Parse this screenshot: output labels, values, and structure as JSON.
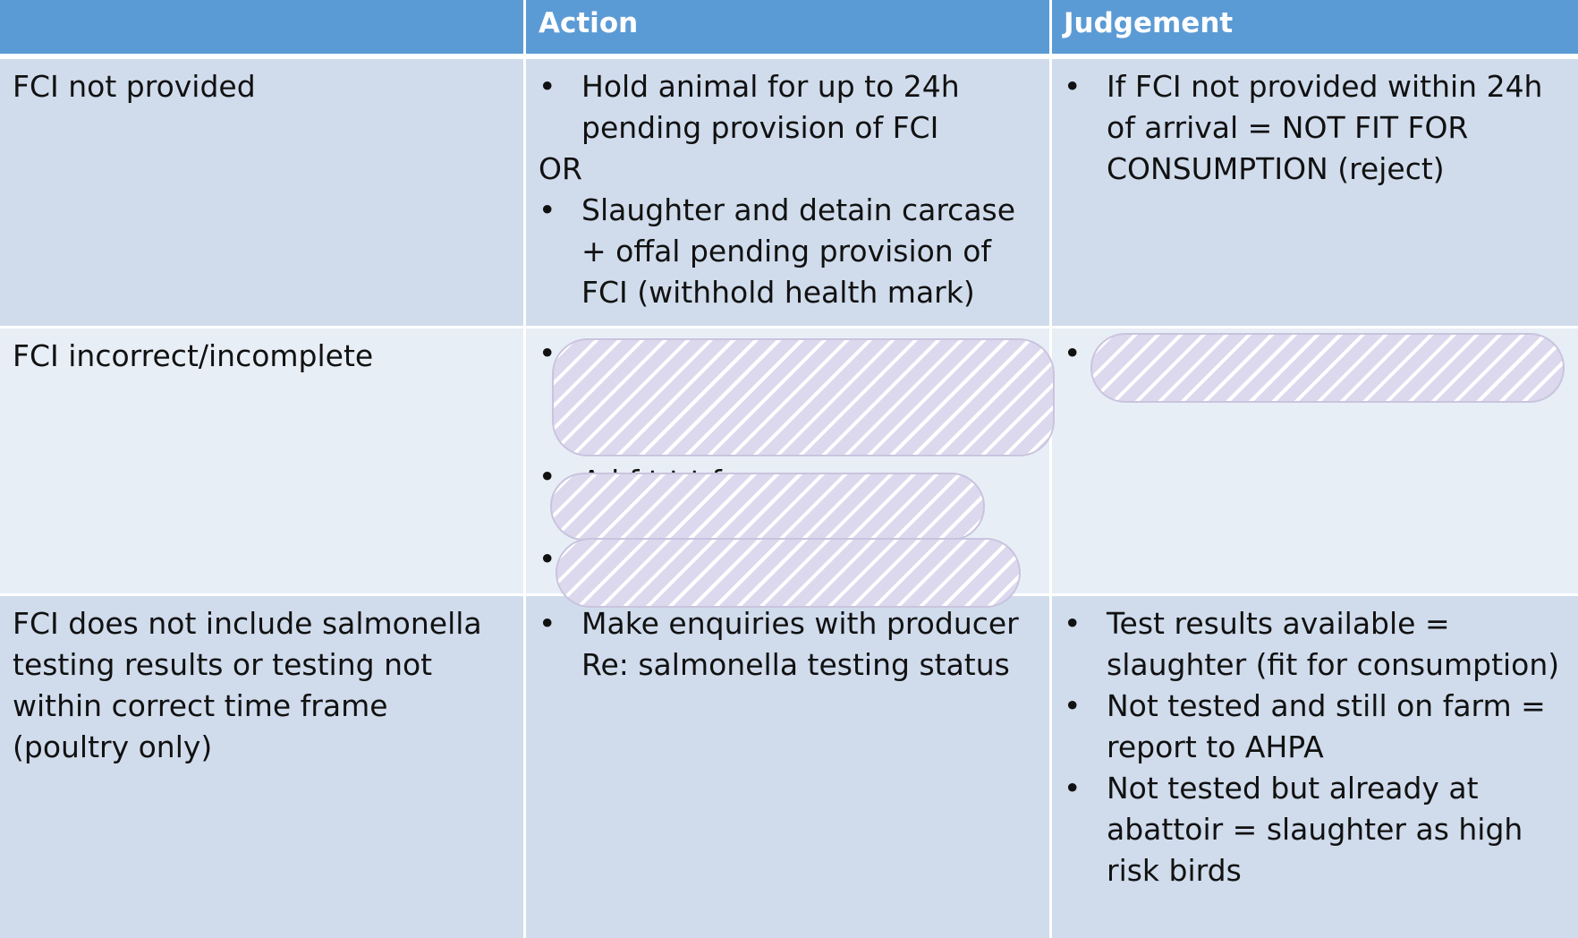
{
  "header": {
    "col0": "",
    "col1": "Action",
    "col2": "Judgement"
  },
  "rows": [
    {
      "condition": "FCI not provided",
      "action_items": [
        "Hold animal for up to 24h pending provision of FCI",
        "OR",
        "Slaughter and detain carcase + offal pending provision of FCI (withhold health mark)"
      ],
      "judgement_items": [
        "If FCI not provided within 24h of arrival = NOT FIT FOR CONSUMPTION (reject)"
      ]
    },
    {
      "condition": "FCI incorrect/incomplete",
      "action_partial_text": "A  l     f  t  t    t f",
      "redaction_label": "redacted"
    },
    {
      "condition": "FCI does not include salmonella testing results or testing not within correct time frame (poultry only)",
      "action_items": [
        "Make enquiries with producer Re: salmonella testing status"
      ],
      "judgement_items": [
        "Test results available = slaughter (fit for consumption)",
        "Not tested and still on farm = report to AHPA",
        "Not tested but already at abattoir = slaughter as high risk birds"
      ]
    }
  ]
}
